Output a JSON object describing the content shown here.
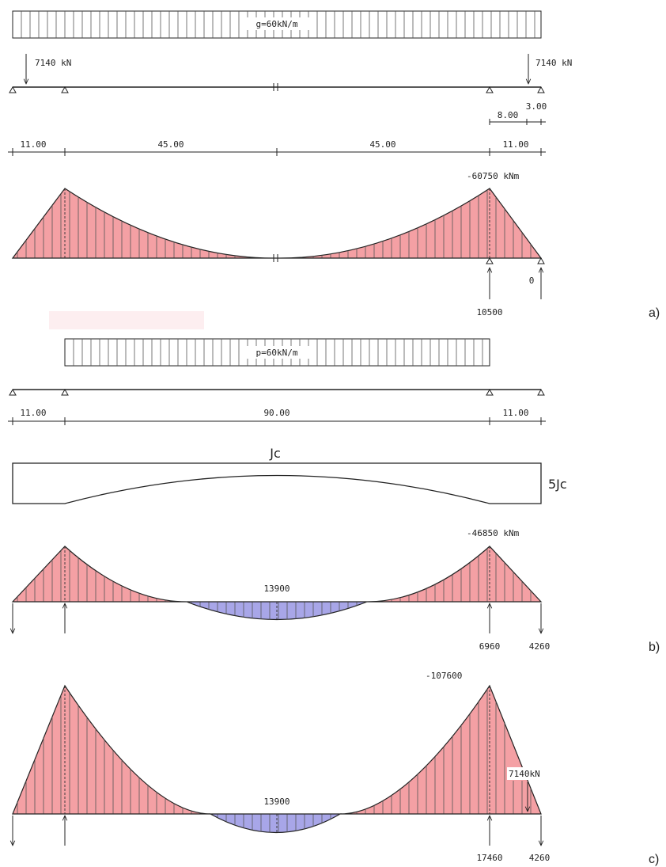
{
  "colors": {
    "negative_moment": "#f4a0a4",
    "positive_moment": "#a8a6e8",
    "stroke": "#222222"
  },
  "panel_a": {
    "load_label": "g=60kN/m",
    "end_force_left": "7140  kN",
    "end_force_right": "7140  kN",
    "sub_dims": [
      "8.00",
      "3.00"
    ],
    "spans": [
      "11.00",
      "45.00",
      "45.00",
      "11.00"
    ],
    "moment_label": "-60750  kNm",
    "reaction_support": "10500",
    "reaction_end": "0",
    "case": "a)"
  },
  "panel_b": {
    "load_label": "p=60kN/m",
    "spans": [
      "11.00",
      "90.00",
      "11.00"
    ],
    "inertia_mid": "Jc",
    "inertia_end": "5Jc",
    "moment_label": "-46850  kNm",
    "positive_label": "13900",
    "reaction_support": "6960",
    "reaction_end": "4260",
    "case": "b)"
  },
  "panel_c": {
    "moment_label": "-107600",
    "positive_label": "13900",
    "force_label": "7140kN",
    "reaction_support": "17460",
    "reaction_end": "4260",
    "case": "c)"
  }
}
